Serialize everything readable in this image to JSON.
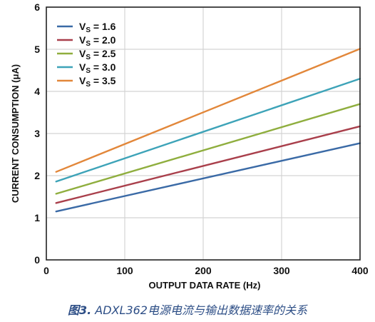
{
  "chart_data": {
    "type": "line",
    "title": "",
    "xlabel": "OUTPUT DATA RATE (Hz)",
    "ylabel": "CURRENT CONSUMPTION (μA)",
    "xlim": [
      0,
      400
    ],
    "ylim": [
      0,
      6
    ],
    "xticks": [
      0,
      100,
      200,
      300,
      400
    ],
    "yticks": [
      0,
      1,
      2,
      3,
      4,
      5,
      6
    ],
    "grid": true,
    "legend_position": "top-left",
    "series": [
      {
        "name": "V_S = 1.6",
        "legend_main": "V",
        "legend_sub": "S",
        "legend_rest": " = 1.6",
        "color": "#3a6aa6",
        "x": [
          12.5,
          400
        ],
        "y": [
          1.15,
          2.77
        ]
      },
      {
        "name": "V_S = 2.0",
        "legend_main": "V",
        "legend_sub": "S",
        "legend_rest": " = 2.0",
        "color": "#a93f4b",
        "x": [
          12.5,
          400
        ],
        "y": [
          1.35,
          3.17
        ]
      },
      {
        "name": "V_S = 2.5",
        "legend_main": "V",
        "legend_sub": "S",
        "legend_rest": " = 2.5",
        "color": "#8fae3e",
        "x": [
          12.5,
          400
        ],
        "y": [
          1.57,
          3.7
        ]
      },
      {
        "name": "V_S = 3.0",
        "legend_main": "V",
        "legend_sub": "S",
        "legend_rest": " = 3.0",
        "color": "#3da3b8",
        "x": [
          12.5,
          400
        ],
        "y": [
          1.86,
          4.3
        ]
      },
      {
        "name": "V_S = 3.5",
        "legend_main": "V",
        "legend_sub": "S",
        "legend_rest": " = 3.5",
        "color": "#e2873a",
        "x": [
          12.5,
          400
        ],
        "y": [
          2.09,
          5.01
        ]
      }
    ]
  },
  "caption": {
    "label": "图3.",
    "text": " ADXL362电源电流与输出数据速率的关系"
  }
}
